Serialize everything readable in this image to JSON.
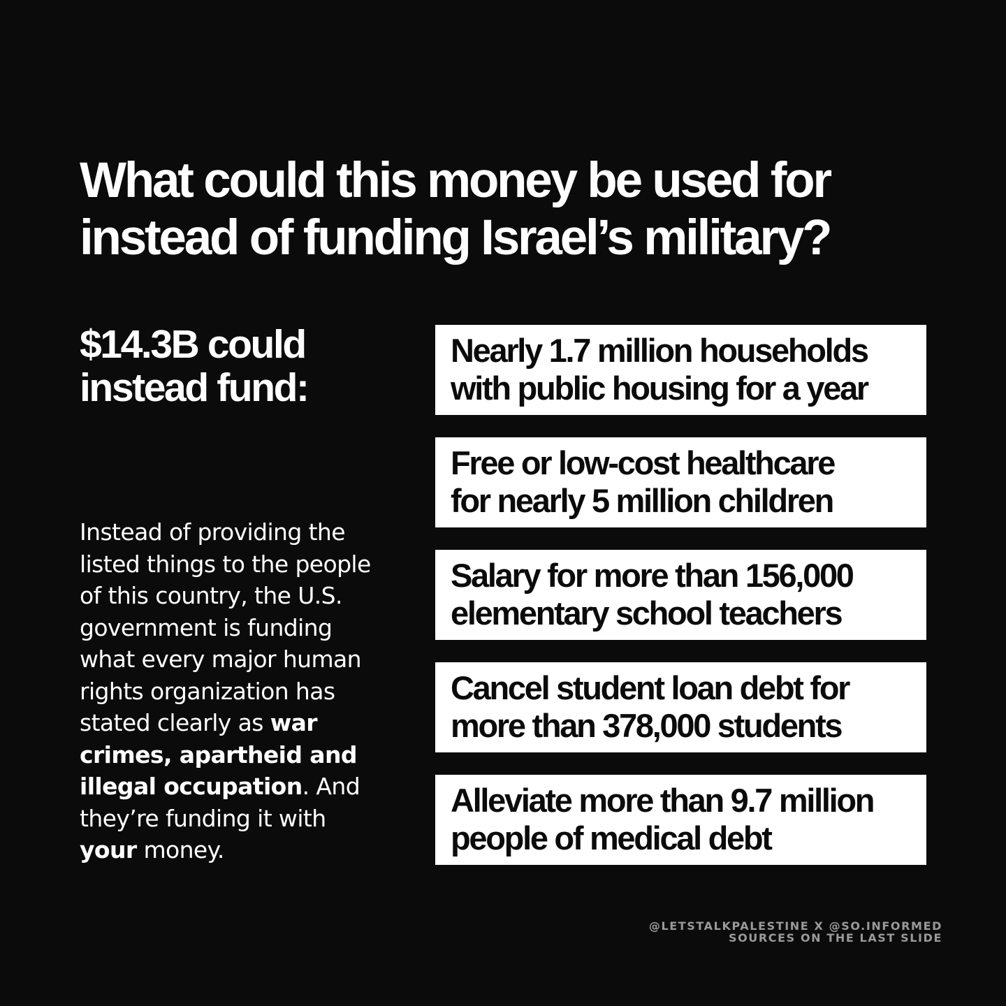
{
  "headline": {
    "line1": "What could this money be used for",
    "line2": "instead of funding Israel’s military?"
  },
  "subhead": {
    "line1": "$14.3B could",
    "line2": "instead fund:"
  },
  "body": {
    "l1": "Instead of providing the",
    "l2": "listed things to the people",
    "l3": "of this country, the U.S.",
    "l4": "government is funding",
    "l5": "what every major human",
    "l6": "rights organization has",
    "l7_plain": "stated clearly as ",
    "l7_bold": "war",
    "l8_bold": "crimes, apartheid and",
    "l9_bold": "illegal occupation",
    "l9_plain": ". And",
    "l10": "they’re funding it with",
    "l11_bold": "your",
    "l11_plain": " money."
  },
  "items": [
    {
      "line1": "Nearly 1.7 million households",
      "line2": "with public housing for a year"
    },
    {
      "line1": "Free or low-cost healthcare",
      "line2": "for nearly 5 million children"
    },
    {
      "line1": "Salary for more than 156,000",
      "line2": "elementary school teachers"
    },
    {
      "line1": "Cancel student loan debt for",
      "line2": "more than 378,000 students"
    },
    {
      "line1": "Alleviate more than 9.7 million",
      "line2": "people of medical debt"
    }
  ],
  "credits": {
    "line1": "@LETSTALKPALESTINE X @SO.INFORMED",
    "line2": "SOURCES ON THE LAST SLIDE"
  },
  "colors": {
    "background": "#0b0b0b",
    "text": "#ffffff",
    "card": "#ffffff",
    "card_text": "#0b0b0b",
    "credits": "#9a9a9a"
  }
}
